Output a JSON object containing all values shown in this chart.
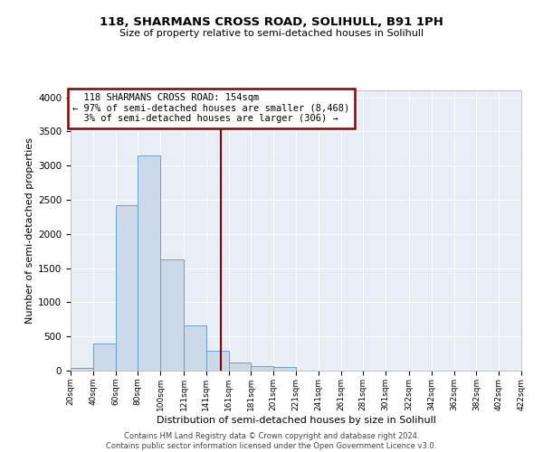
{
  "title_line1": "118, SHARMANS CROSS ROAD, SOLIHULL, B91 1PH",
  "title_line2": "Size of property relative to semi-detached houses in Solihull",
  "xlabel": "Distribution of semi-detached houses by size in Solihull",
  "ylabel": "Number of semi-detached properties",
  "footer_line1": "Contains HM Land Registry data © Crown copyright and database right 2024.",
  "footer_line2": "Contains public sector information licensed under the Open Government Licence v3.0.",
  "property_size": 154,
  "property_label": "118 SHARMANS CROSS ROAD: 154sqm",
  "pct_smaller": 97,
  "count_smaller": 8468,
  "pct_larger": 3,
  "count_larger": 306,
  "bar_edges": [
    20,
    40,
    60,
    80,
    100,
    121,
    141,
    161,
    181,
    201,
    221,
    241,
    261,
    281,
    301,
    322,
    342,
    362,
    382,
    402,
    422
  ],
  "bar_heights": [
    35,
    395,
    2420,
    3150,
    1630,
    665,
    290,
    115,
    60,
    55,
    0,
    0,
    0,
    0,
    0,
    0,
    0,
    0,
    0,
    0
  ],
  "bar_color": "#ccd9e8",
  "bar_edge_color": "#6b9fc8",
  "vline_color": "#8b0000",
  "vline_x": 154,
  "annotation_box_color": "#8b0000",
  "background_color": "#e8eef6",
  "grid_color": "#ffffff",
  "ylim": [
    0,
    4100
  ],
  "yticks": [
    0,
    500,
    1000,
    1500,
    2000,
    2500,
    3000,
    3500,
    4000
  ]
}
